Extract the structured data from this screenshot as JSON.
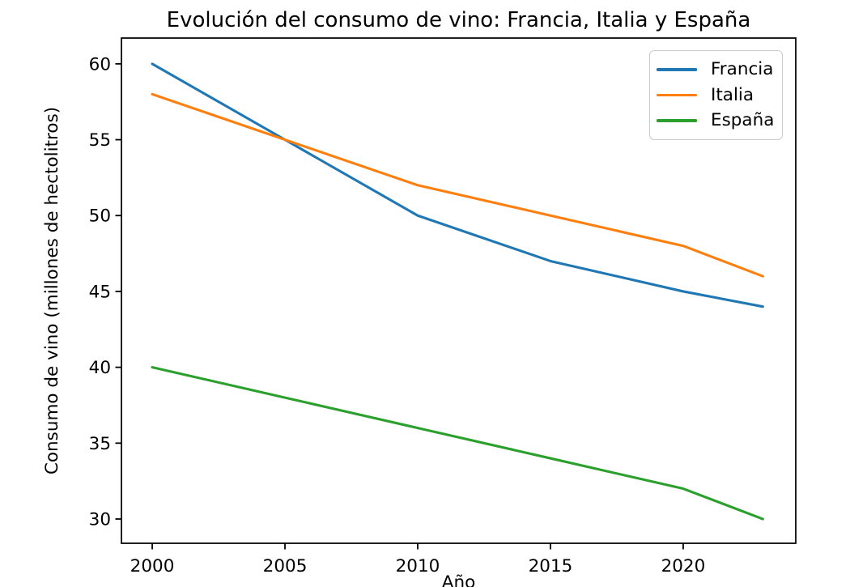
{
  "chart_data": {
    "type": "line",
    "title": "Evolución del consumo de vino: Francia, Italia y España",
    "xlabel": "Año",
    "ylabel": "Consumo de vino (millones de hectolitros)",
    "x": [
      2000,
      2005,
      2010,
      2015,
      2020,
      2023
    ],
    "series": [
      {
        "name": "Francia",
        "color": "#1f77b4",
        "values": [
          60,
          55,
          50,
          47,
          45,
          44
        ]
      },
      {
        "name": "Italia",
        "color": "#ff7f0e",
        "values": [
          58,
          55,
          52,
          50,
          48,
          46
        ]
      },
      {
        "name": "España",
        "color": "#2ca02c",
        "values": [
          40,
          38,
          36,
          34,
          32,
          30
        ]
      }
    ],
    "xticks": [
      2000,
      2005,
      2010,
      2015,
      2020
    ],
    "yticks": [
      30,
      35,
      40,
      45,
      50,
      55,
      60
    ],
    "xlim": [
      1998.84,
      2024.24
    ],
    "ylim": [
      28.4,
      61.7
    ],
    "grid": false,
    "legend_position": "upper right",
    "axis_color": "#000000",
    "text_color": "#000000",
    "background_color": "#ffffff"
  }
}
